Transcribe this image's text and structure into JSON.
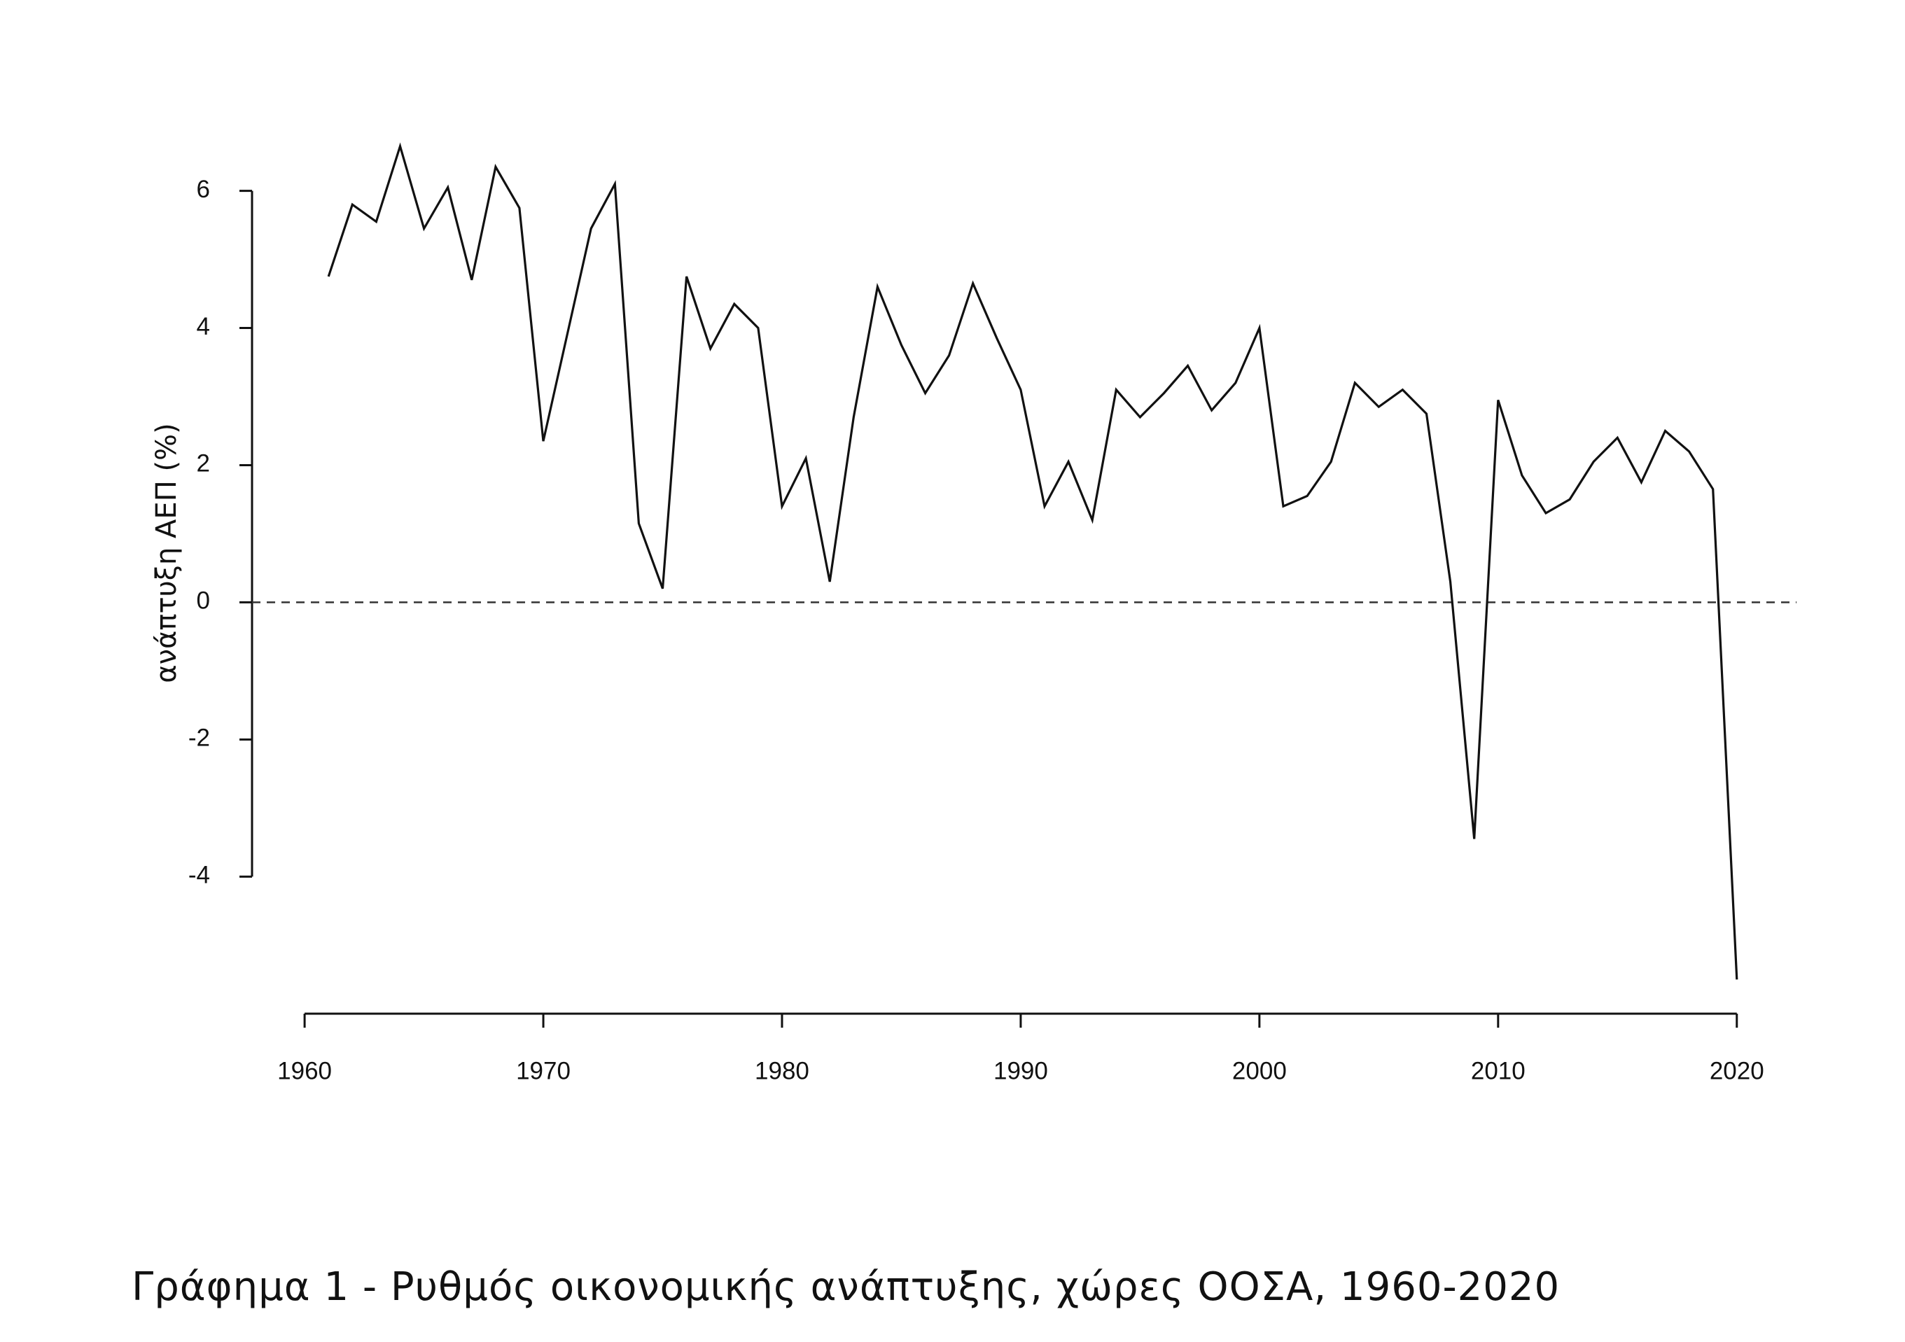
{
  "chart_data": {
    "type": "line",
    "title": "Γράφημα 1 - Ρυθμός οικονομικής ανάπτυξης, χώρες ΟΟΣΑ, 1960-2020",
    "y_label": "ανάπτυξη ΑΕΠ (%)",
    "x": [
      1961,
      1962,
      1963,
      1964,
      1965,
      1966,
      1967,
      1968,
      1969,
      1970,
      1971,
      1972,
      1973,
      1974,
      1975,
      1976,
      1977,
      1978,
      1979,
      1980,
      1981,
      1982,
      1983,
      1984,
      1985,
      1986,
      1987,
      1988,
      1989,
      1990,
      1991,
      1992,
      1993,
      1994,
      1995,
      1996,
      1997,
      1998,
      1999,
      2000,
      2001,
      2002,
      2003,
      2004,
      2005,
      2006,
      2007,
      2008,
      2009,
      2010,
      2011,
      2012,
      2013,
      2014,
      2015,
      2016,
      2017,
      2018,
      2019,
      2020
    ],
    "series": [
      {
        "color": "#111111",
        "values": [
          4.75,
          5.8,
          5.55,
          6.65,
          5.45,
          6.05,
          4.7,
          6.35,
          5.75,
          2.35,
          3.9,
          5.45,
          6.1,
          1.15,
          0.2,
          4.75,
          3.7,
          4.35,
          4.0,
          1.4,
          2.1,
          0.3,
          2.7,
          4.6,
          3.75,
          3.05,
          3.6,
          4.65,
          3.85,
          3.1,
          1.4,
          2.05,
          1.2,
          3.1,
          2.7,
          3.05,
          3.45,
          2.8,
          3.2,
          4.0,
          1.4,
          1.55,
          2.05,
          3.2,
          2.85,
          3.1,
          2.75,
          0.3,
          -3.45,
          2.95,
          1.85,
          1.3,
          1.5,
          2.05,
          2.4,
          1.75,
          2.5,
          2.2,
          1.65,
          -5.5
        ]
      }
    ],
    "reference_line": 0,
    "xlim": [
      1959,
      2022.5
    ],
    "ylim": [
      -5.6,
      6.7
    ],
    "xticks": [
      1960,
      1970,
      1980,
      1990,
      2000,
      2010,
      2020
    ],
    "yticks": [
      -4,
      -2,
      0,
      2,
      4,
      6
    ],
    "grid": false
  }
}
